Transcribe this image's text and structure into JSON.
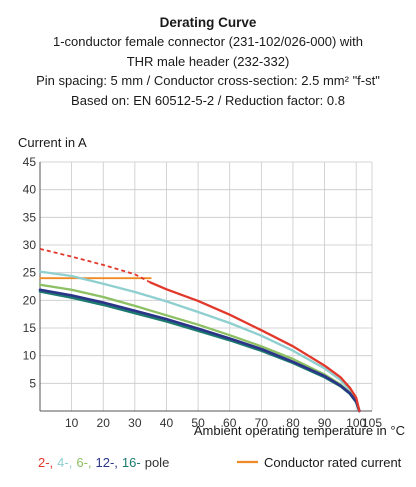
{
  "header": {
    "title": "Derating Curve",
    "lines": [
      "1-conductor female connector (231-102/026-000) with",
      "THR male header (232-332)",
      "Pin spacing: 5 mm / Conductor cross-section: 2.5 mm² \"f-st\"",
      "Based on: EN 60512-5-2 / Reduction factor: 0.8"
    ]
  },
  "chart_data": {
    "type": "line",
    "title": "Derating Curve",
    "ylabel": "Current in A",
    "xlabel": "Ambient operating temperature in °C",
    "xlim": [
      0,
      105
    ],
    "ylim": [
      0,
      45
    ],
    "x_ticks": [
      10,
      20,
      30,
      40,
      50,
      60,
      70,
      80,
      90,
      100,
      105
    ],
    "x_tick_labels": [
      "10",
      "20",
      "30",
      "40",
      "50",
      "60",
      "70",
      "80",
      "90",
      "100",
      "105"
    ],
    "y_ticks": [
      5,
      10,
      15,
      20,
      25,
      30,
      35,
      40,
      45
    ],
    "y_tick_labels": [
      "5",
      "10",
      "15",
      "20",
      "25",
      "30",
      "35",
      "40",
      "45"
    ],
    "grid": true,
    "legend": {
      "placement": "bottom",
      "pole_labels": [
        {
          "text": "2-,",
          "color": "#e2382b"
        },
        {
          "text": "4-,",
          "color": "#8fcfd0"
        },
        {
          "text": "6-,",
          "color": "#8cc063"
        },
        {
          "text": "12-,",
          "color": "#2b3488"
        },
        {
          "text": "16-",
          "color": "#1c7a6e"
        },
        {
          "text": "pole",
          "color": "#333333"
        }
      ],
      "rated_label": "Conductor rated current",
      "rated_color": "#f08a24"
    },
    "series": [
      {
        "name": "2-pole",
        "color": "#e2382b",
        "x": [
          35,
          40,
          50,
          60,
          70,
          80,
          90,
          95,
          98,
          100,
          101
        ],
        "y": [
          23.2,
          22.0,
          19.9,
          17.4,
          14.6,
          11.7,
          8.2,
          6.1,
          4.2,
          2.4,
          0
        ],
        "dashed_x": [
          0,
          10,
          20,
          30,
          35
        ],
        "dashed_y": [
          29.3,
          27.9,
          26.4,
          24.7,
          23.2
        ]
      },
      {
        "name": "4-pole",
        "color": "#8fcfd0",
        "x": [
          0,
          10,
          20,
          30,
          40,
          50,
          60,
          70,
          80,
          90,
          95,
          98,
          100,
          101
        ],
        "y": [
          25.2,
          24.4,
          23.0,
          21.5,
          19.8,
          17.9,
          15.9,
          13.6,
          10.9,
          7.7,
          5.6,
          3.8,
          2.1,
          0
        ]
      },
      {
        "name": "6-pole",
        "color": "#8cc063",
        "x": [
          0,
          10,
          20,
          30,
          40,
          50,
          60,
          70,
          80,
          90,
          95,
          98,
          100,
          101
        ],
        "y": [
          22.8,
          21.9,
          20.6,
          19.0,
          17.3,
          15.6,
          13.7,
          11.7,
          9.4,
          6.6,
          4.8,
          3.3,
          1.8,
          0
        ]
      },
      {
        "name": "12-pole",
        "color": "#2b3488",
        "x": [
          0,
          10,
          20,
          30,
          40,
          50,
          60,
          70,
          80,
          90,
          95,
          98,
          100,
          101
        ],
        "y": [
          21.9,
          20.9,
          19.6,
          18.1,
          16.6,
          14.9,
          13.1,
          11.2,
          8.9,
          6.3,
          4.6,
          3.2,
          1.7,
          0
        ]
      },
      {
        "name": "16-pole",
        "color": "#1c7a6e",
        "x": [
          0,
          10,
          20,
          30,
          40,
          50,
          60,
          70,
          80,
          90,
          95,
          98,
          100,
          101
        ],
        "y": [
          21.6,
          20.5,
          19.2,
          17.7,
          16.2,
          14.5,
          12.8,
          10.9,
          8.7,
          6.1,
          4.5,
          3.1,
          1.6,
          0
        ]
      },
      {
        "name": "Conductor rated current",
        "color": "#f08a24",
        "x": [
          0,
          35
        ],
        "y": [
          24,
          24
        ]
      }
    ]
  }
}
